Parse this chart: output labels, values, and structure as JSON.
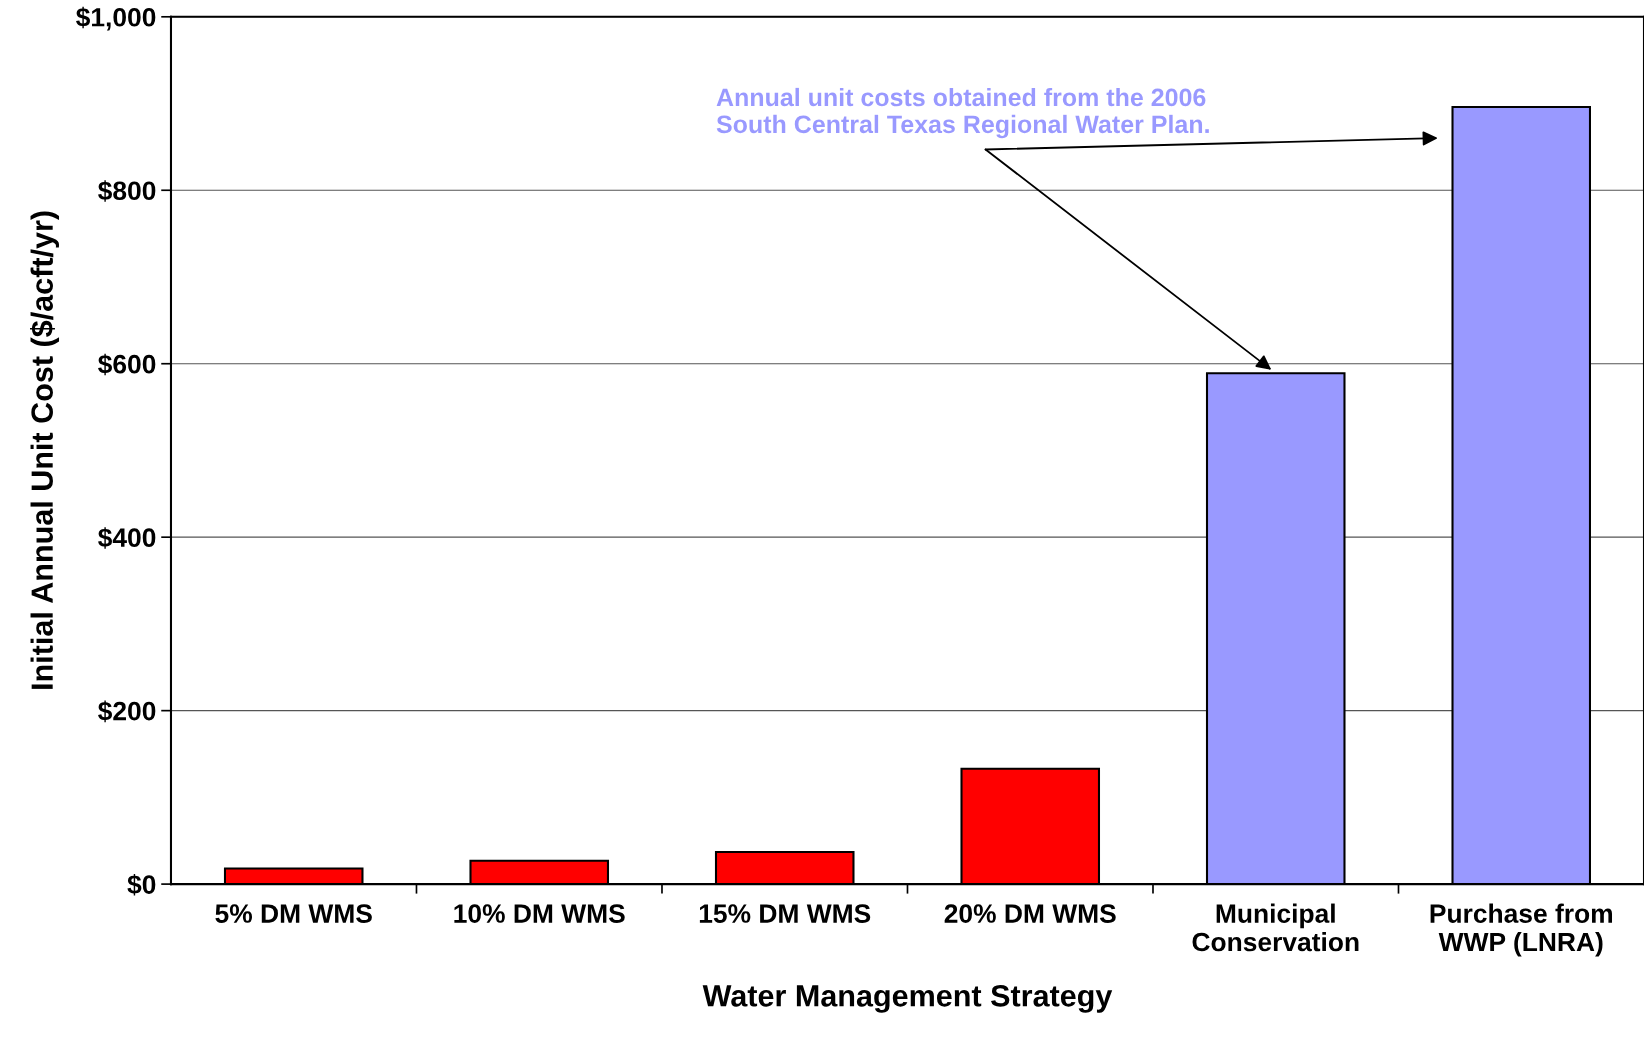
{
  "chart_data": {
    "type": "bar",
    "xlabel": "Water Management Strategy",
    "ylabel": "Initial Annual Unit Cost ($/acft/yr)",
    "categories": [
      "5% DM WMS",
      "10% DM WMS",
      "15% DM WMS",
      "20% DM WMS",
      "Municipal\nConservation",
      "Purchase from\nWWP (LNRA)"
    ],
    "values": [
      18,
      27,
      37,
      133,
      589,
      896
    ],
    "colors": [
      "#ff0000",
      "#ff0000",
      "#ff0000",
      "#ff0000",
      "#9999ff",
      "#9999ff"
    ],
    "ylim": [
      0,
      1000
    ],
    "yticks": [
      {
        "value": 0,
        "label": "$0"
      },
      {
        "value": 200,
        "label": "$200"
      },
      {
        "value": 400,
        "label": "$400"
      },
      {
        "value": 600,
        "label": "$600"
      },
      {
        "value": 800,
        "label": "$800"
      },
      {
        "value": 1000,
        "label": "$1,000"
      }
    ],
    "grid": "y",
    "legend": false,
    "annotations": [
      {
        "text": "Annual unit costs obtained from the 2006\nSouth Central Texas Regional Water Plan.",
        "x": "Municipal\nConservation",
        "y": 589
      }
    ]
  }
}
